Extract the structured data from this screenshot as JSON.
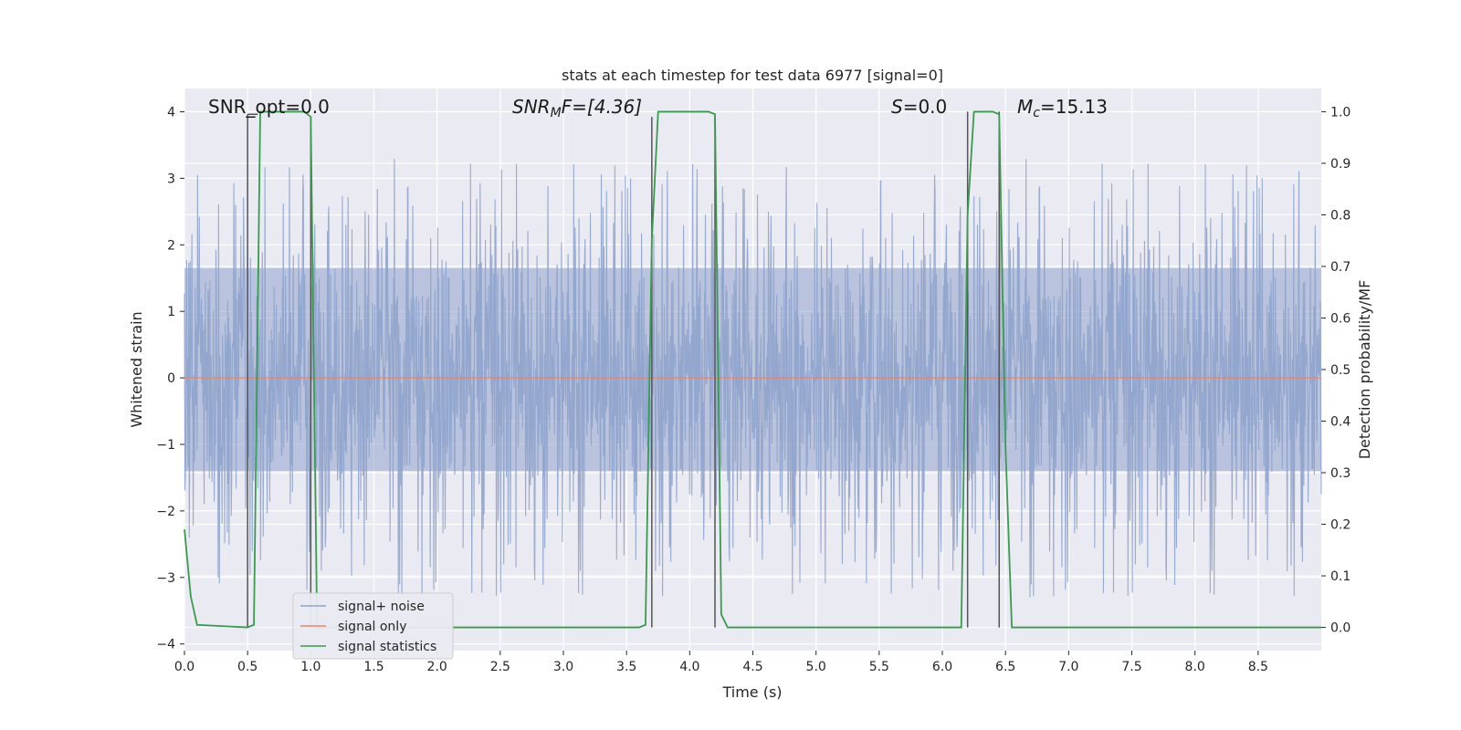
{
  "chart_data": {
    "type": "line",
    "title": "stats at each timestep for test data 6977 [signal=0]",
    "xlabel": "Time (s)",
    "ylabel_left": "Whitened strain",
    "ylabel_right": "Detection probability/MF",
    "xlim": [
      0.0,
      9.0
    ],
    "ylim_left": [
      -4.1,
      4.35
    ],
    "ylim_right": [
      -0.045,
      1.045
    ],
    "x_ticks": [
      "0.0",
      "0.5",
      "1.0",
      "1.5",
      "2.0",
      "2.5",
      "3.0",
      "3.5",
      "4.0",
      "4.5",
      "5.0",
      "5.5",
      "6.0",
      "6.5",
      "7.0",
      "7.5",
      "8.0",
      "8.5"
    ],
    "y_left_ticks": [
      "4",
      "3",
      "2",
      "1",
      "0",
      "−1",
      "−2",
      "−3",
      "−4"
    ],
    "y_right_ticks": [
      "1.0",
      "0.9",
      "0.8",
      "0.7",
      "0.6",
      "0.5",
      "0.4",
      "0.3",
      "0.2",
      "0.1",
      "0.0"
    ],
    "grid": true,
    "legend_position": "lower-left",
    "annotations": {
      "snr_opt": "SNR_opt=0.0",
      "snr_mf_base": "SNR",
      "snr_mf_sub": "M",
      "snr_mf_rest": "F=[4.36]",
      "s_base": "S",
      "s_rest": "=0.0",
      "mc_base": "M",
      "mc_sub": "c",
      "mc_rest": "=15.13"
    },
    "series": [
      {
        "name": "signal+ noise",
        "color": "#8fa3cc",
        "style": "noise",
        "amplitude_core": [
          -1.4,
          1.65
        ],
        "amplitude_peak": [
          -3.7,
          3.75
        ]
      },
      {
        "name": "signal only",
        "color": "#e5866b",
        "x": [
          0.0,
          9.0
        ],
        "y": [
          0.0,
          0.0
        ]
      },
      {
        "name": "signal statistics",
        "color": "#3a9a4f",
        "axis": "right",
        "x": [
          0.0,
          0.05,
          0.1,
          0.5,
          0.55,
          0.6,
          0.95,
          1.0,
          1.05,
          3.6,
          3.65,
          3.7,
          3.75,
          4.15,
          4.2,
          4.25,
          4.3,
          6.15,
          6.2,
          6.25,
          6.4,
          6.45,
          6.5,
          6.55,
          9.0
        ],
        "y": [
          0.19,
          0.06,
          0.005,
          0.0,
          0.005,
          1.0,
          1.0,
          0.99,
          0.0,
          0.0,
          0.005,
          0.75,
          1.0,
          1.0,
          0.995,
          0.025,
          0.0,
          0.0,
          0.8,
          1.0,
          1.0,
          0.995,
          0.35,
          0.0,
          0.0
        ]
      }
    ],
    "vertical_markers": [
      {
        "x": 0.5,
        "y_top": 0.995
      },
      {
        "x": 1.0,
        "y_top": 0.99
      },
      {
        "x": 3.7,
        "y_top": 0.99
      },
      {
        "x": 4.2,
        "y_top": 0.99
      },
      {
        "x": 6.2,
        "y_top": 1.0
      },
      {
        "x": 6.45,
        "y_top": 1.0
      }
    ]
  }
}
